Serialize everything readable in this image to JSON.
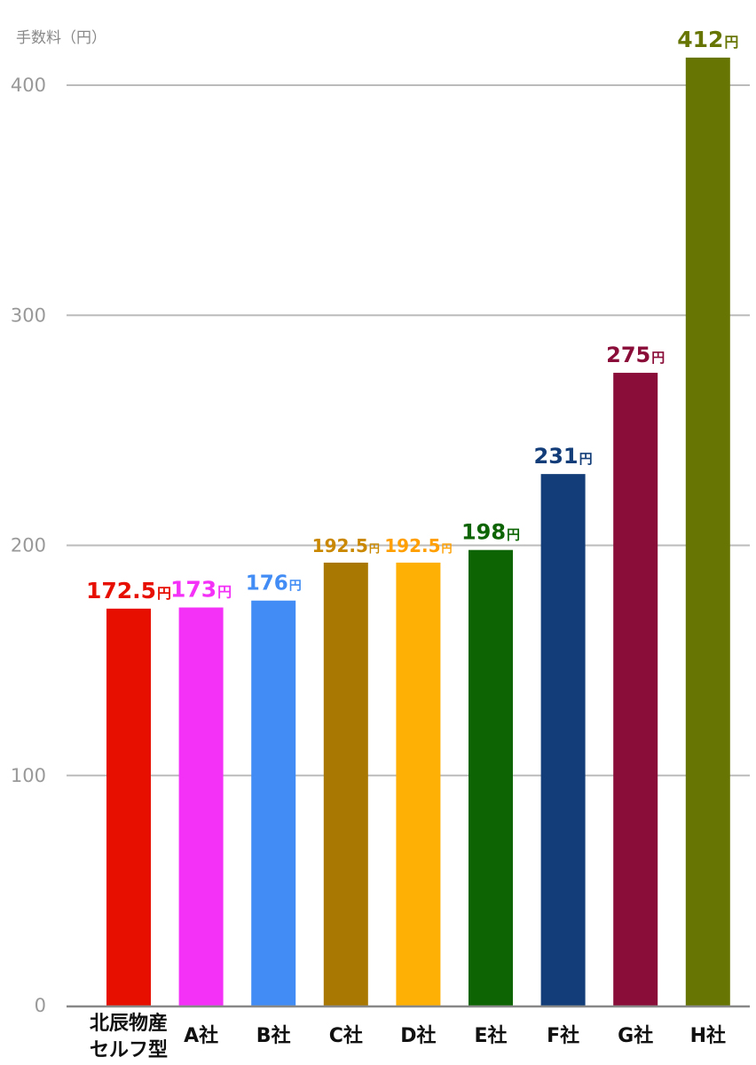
{
  "chart_data": {
    "type": "bar",
    "ylabel": "手数料（円）",
    "ylim": [
      0,
      400
    ],
    "yticks": [
      0,
      100,
      200,
      300,
      400
    ],
    "grid": true,
    "categories": [
      [
        "北辰物産",
        "セルフ型"
      ],
      [
        "A社"
      ],
      [
        "B社"
      ],
      [
        "C社"
      ],
      [
        "D社"
      ],
      [
        "E社"
      ],
      [
        "F社"
      ],
      [
        "G社"
      ],
      [
        "H社"
      ]
    ],
    "values": [
      172.5,
      173,
      176,
      192.5,
      192.5,
      198,
      231,
      275,
      412
    ],
    "data_labels": [
      "172.5",
      "173",
      "176",
      "192.5",
      "192.5",
      "198",
      "231",
      "275",
      "412"
    ],
    "unit": "円",
    "colors": [
      "#e60f00",
      "#f331f7",
      "#428df5",
      "#a97802",
      "#ffb005",
      "#0c6502",
      "#123d78",
      "#890d38",
      "#677503"
    ],
    "label_colors": [
      "#e60f00",
      "#f331f7",
      "#428df5",
      "#c98800",
      "#ff9f00",
      "#0c6502",
      "#123d78",
      "#890d38",
      "#677503"
    ],
    "category_label_colors": [
      "#e60f00",
      "#111111",
      "#111111",
      "#111111",
      "#111111",
      "#111111",
      "#111111",
      "#111111",
      "#111111"
    ]
  }
}
